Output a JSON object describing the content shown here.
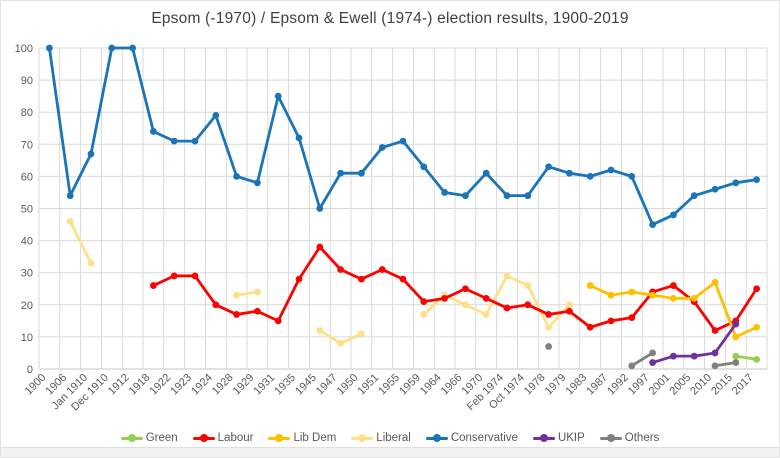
{
  "chart_data": {
    "type": "line",
    "title": "Epsom (-1970) / Epsom & Ewell (1974-) election results, 1900-2019",
    "xlabel": "",
    "ylabel": "",
    "ylim": [
      0,
      100
    ],
    "ytick_step": 10,
    "grid": true,
    "legend_position": "bottom",
    "categories": [
      "1900",
      "1906",
      "Jan 1910",
      "Dec 1910",
      "1912",
      "1918",
      "1922",
      "1923",
      "1924",
      "1928",
      "1929",
      "1931",
      "1935",
      "1945",
      "1947",
      "1950",
      "1951",
      "1955",
      "1959",
      "1964",
      "1966",
      "1970",
      "Feb 1974",
      "Oct 1974",
      "1978",
      "1979",
      "1983",
      "1987",
      "1992",
      "1997",
      "2001",
      "2005",
      "2010",
      "2015",
      "2017"
    ],
    "series": [
      {
        "name": "Green",
        "color": "#92D050",
        "values": [
          null,
          null,
          null,
          null,
          null,
          null,
          null,
          null,
          null,
          null,
          null,
          null,
          null,
          null,
          null,
          null,
          null,
          null,
          null,
          null,
          null,
          null,
          null,
          null,
          null,
          null,
          null,
          null,
          null,
          null,
          null,
          null,
          null,
          4,
          3
        ]
      },
      {
        "name": "Labour",
        "color": "#FF0000",
        "values": [
          null,
          null,
          null,
          null,
          null,
          26,
          29,
          29,
          20,
          17,
          18,
          15,
          28,
          38,
          31,
          28,
          31,
          28,
          21,
          22,
          25,
          22,
          19,
          20,
          17,
          18,
          13,
          15,
          16,
          24,
          26,
          21,
          12,
          15,
          25
        ]
      },
      {
        "name": "Lib Dem",
        "color": "#FFC000",
        "values": [
          null,
          null,
          null,
          null,
          null,
          null,
          null,
          null,
          null,
          null,
          null,
          null,
          null,
          null,
          null,
          null,
          null,
          null,
          null,
          null,
          null,
          null,
          null,
          null,
          null,
          null,
          26,
          23,
          24,
          23,
          22,
          22,
          27,
          10,
          13
        ]
      },
      {
        "name": "Liberal",
        "color": "#FFE08A",
        "values": [
          null,
          46,
          33,
          null,
          null,
          null,
          null,
          null,
          null,
          23,
          24,
          null,
          null,
          12,
          8,
          11,
          null,
          null,
          17,
          23,
          20,
          17,
          29,
          26,
          13,
          20,
          null,
          null,
          null,
          null,
          null,
          null,
          null,
          null,
          null
        ]
      },
      {
        "name": "Conservative",
        "color": "#1B74B8",
        "values": [
          100,
          54,
          67,
          100,
          100,
          74,
          71,
          71,
          79,
          60,
          58,
          85,
          72,
          50,
          61,
          61,
          69,
          71,
          63,
          55,
          54,
          61,
          54,
          54,
          63,
          61,
          60,
          62,
          60,
          45,
          48,
          54,
          56,
          58,
          59
        ]
      },
      {
        "name": "UKIP",
        "color": "#7030A0",
        "values": [
          null,
          null,
          null,
          null,
          null,
          null,
          null,
          null,
          null,
          null,
          null,
          null,
          null,
          null,
          null,
          null,
          null,
          null,
          null,
          null,
          null,
          null,
          null,
          null,
          null,
          null,
          null,
          null,
          null,
          2,
          4,
          4,
          5,
          14,
          null
        ]
      },
      {
        "name": "Others",
        "color": "#808080",
        "values": [
          null,
          null,
          null,
          null,
          null,
          null,
          null,
          null,
          null,
          null,
          null,
          null,
          null,
          null,
          null,
          null,
          null,
          null,
          null,
          null,
          null,
          null,
          null,
          null,
          7,
          null,
          null,
          null,
          1,
          5,
          null,
          null,
          1,
          2,
          null
        ]
      }
    ],
    "yticks": [
      0,
      10,
      20,
      30,
      40,
      50,
      60,
      70,
      80,
      90,
      100
    ]
  }
}
